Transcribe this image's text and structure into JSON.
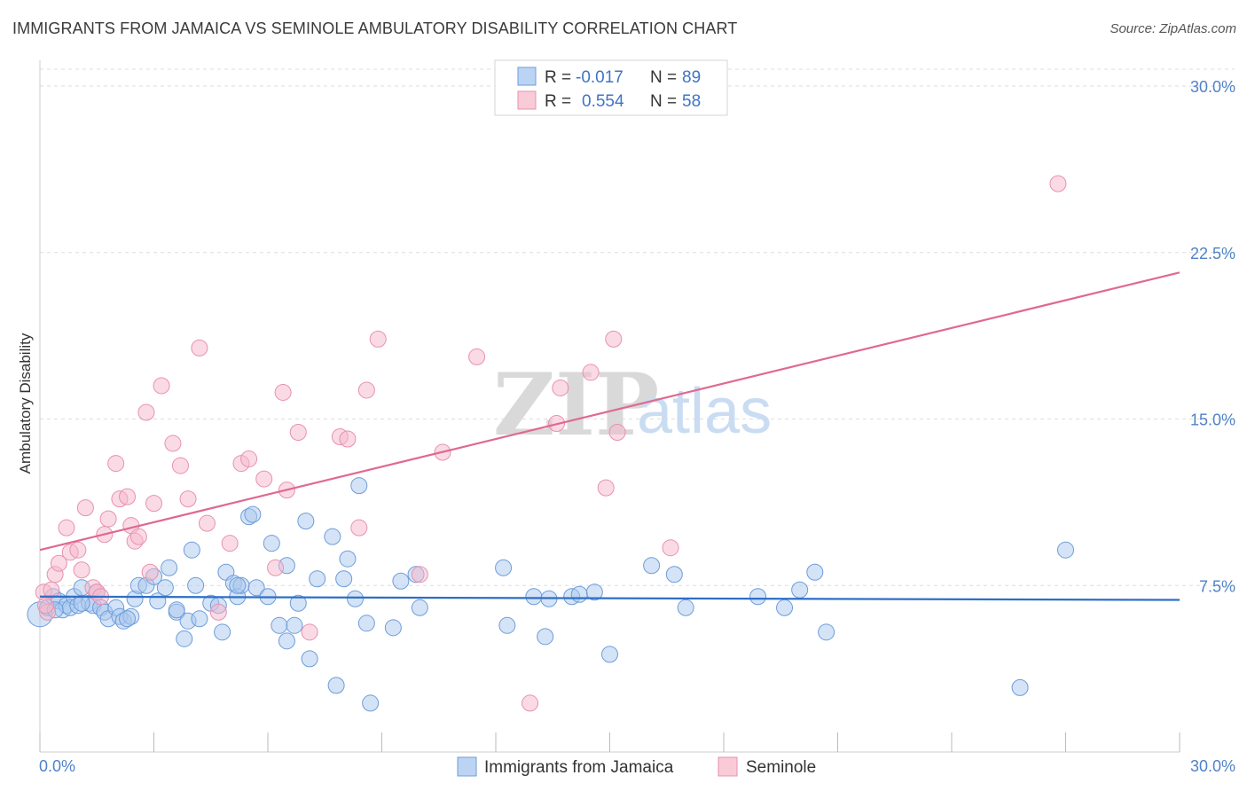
{
  "title": "IMMIGRANTS FROM JAMAICA VS SEMINOLE AMBULATORY DISABILITY CORRELATION CHART",
  "source": "Source: ZipAtlas.com",
  "watermark": {
    "part1": "ZIP",
    "part2": "atlas"
  },
  "colors": {
    "blue_fill": "#a9c7ee",
    "blue_stroke": "#6d9ddb",
    "blue_line": "#2e6ec6",
    "pink_fill": "#f5b8cb",
    "pink_stroke": "#e891ad",
    "pink_line": "#e0698f",
    "tick_label": "#4f82c8",
    "grid": "#dddddd"
  },
  "legend": {
    "rows": [
      {
        "r_label": "R = ",
        "r_value": "-0.017",
        "n_label": "N = ",
        "n_value": "89"
      },
      {
        "r_label": "R = ",
        "r_value": "0.554",
        "n_label": "N = ",
        "n_value": "58"
      }
    ]
  },
  "chart_data": {
    "type": "scatter",
    "title": "IMMIGRANTS FROM JAMAICA VS SEMINOLE AMBULATORY DISABILITY CORRELATION CHART",
    "xlabel": "",
    "ylabel": "Ambulatory Disability",
    "xlim": [
      0,
      30
    ],
    "ylim": [
      0,
      31
    ],
    "x_tick_labels": [
      "0.0%",
      "30.0%"
    ],
    "y_ticks": [
      7.5,
      15.0,
      22.5,
      30.0
    ],
    "y_tick_labels": [
      "7.5%",
      "15.0%",
      "22.5%",
      "30.0%"
    ],
    "grid": "horizontal dashed",
    "legend_placement": "bottom",
    "series": [
      {
        "name": "Immigrants from Jamaica",
        "color": "blue",
        "trend": {
          "x0": 0,
          "y0": 7.0,
          "x1": 30,
          "y1": 6.85
        },
        "points": [
          [
            0.0,
            6.2
          ],
          [
            0.2,
            6.5
          ],
          [
            0.35,
            7.0
          ],
          [
            0.5,
            6.8
          ],
          [
            0.6,
            6.4
          ],
          [
            0.7,
            6.6
          ],
          [
            0.8,
            6.5
          ],
          [
            0.9,
            7.0
          ],
          [
            1.0,
            6.6
          ],
          [
            1.1,
            7.4
          ],
          [
            1.3,
            6.7
          ],
          [
            1.4,
            6.6
          ],
          [
            1.5,
            7.2
          ],
          [
            1.6,
            6.5
          ],
          [
            1.7,
            6.3
          ],
          [
            1.8,
            6.0
          ],
          [
            2.0,
            6.5
          ],
          [
            2.1,
            6.1
          ],
          [
            2.2,
            5.9
          ],
          [
            2.4,
            6.1
          ],
          [
            2.5,
            6.9
          ],
          [
            2.6,
            7.5
          ],
          [
            2.8,
            7.5
          ],
          [
            3.0,
            7.9
          ],
          [
            3.1,
            6.8
          ],
          [
            3.3,
            7.4
          ],
          [
            3.4,
            8.3
          ],
          [
            3.6,
            6.3
          ],
          [
            3.8,
            5.1
          ],
          [
            3.9,
            5.9
          ],
          [
            4.1,
            7.5
          ],
          [
            4.2,
            6.0
          ],
          [
            4.0,
            9.1
          ],
          [
            4.5,
            6.7
          ],
          [
            4.7,
            6.6
          ],
          [
            4.8,
            5.4
          ],
          [
            4.9,
            8.1
          ],
          [
            5.1,
            7.6
          ],
          [
            5.2,
            7.0
          ],
          [
            5.3,
            7.5
          ],
          [
            5.5,
            10.6
          ],
          [
            5.6,
            10.7
          ],
          [
            5.7,
            7.4
          ],
          [
            6.0,
            7.0
          ],
          [
            6.1,
            9.4
          ],
          [
            6.3,
            5.7
          ],
          [
            6.5,
            5.0
          ],
          [
            6.7,
            5.7
          ],
          [
            6.8,
            6.7
          ],
          [
            7.0,
            10.4
          ],
          [
            7.1,
            4.2
          ],
          [
            7.3,
            7.8
          ],
          [
            7.7,
            9.7
          ],
          [
            7.8,
            3.0
          ],
          [
            8.0,
            7.8
          ],
          [
            8.1,
            8.7
          ],
          [
            8.3,
            6.9
          ],
          [
            8.4,
            12.0
          ],
          [
            8.6,
            5.8
          ],
          [
            8.7,
            2.2
          ],
          [
            9.3,
            5.6
          ],
          [
            9.5,
            7.7
          ],
          [
            9.9,
            8.0
          ],
          [
            10.0,
            6.5
          ],
          [
            12.2,
            8.3
          ],
          [
            12.3,
            5.7
          ],
          [
            13.0,
            7.0
          ],
          [
            13.3,
            5.2
          ],
          [
            13.4,
            6.9
          ],
          [
            14.0,
            7.0
          ],
          [
            14.2,
            7.1
          ],
          [
            14.6,
            7.2
          ],
          [
            15.0,
            4.4
          ],
          [
            16.1,
            8.4
          ],
          [
            16.7,
            8.0
          ],
          [
            17.0,
            6.5
          ],
          [
            18.9,
            7.0
          ],
          [
            19.6,
            6.5
          ],
          [
            20.0,
            7.3
          ],
          [
            20.4,
            8.1
          ],
          [
            20.7,
            5.4
          ],
          [
            25.8,
            2.9
          ],
          [
            27.0,
            9.1
          ],
          [
            6.5,
            8.4
          ],
          [
            3.6,
            6.4
          ],
          [
            1.1,
            6.7
          ],
          [
            0.4,
            6.4
          ],
          [
            2.3,
            6.0
          ],
          [
            5.2,
            7.5
          ]
        ]
      },
      {
        "name": "Seminole",
        "color": "pink",
        "trend": {
          "x0": 0,
          "y0": 9.1,
          "x1": 30,
          "y1": 21.6
        },
        "points": [
          [
            0.1,
            7.2
          ],
          [
            0.2,
            6.3
          ],
          [
            0.3,
            7.3
          ],
          [
            0.4,
            8.0
          ],
          [
            0.5,
            8.5
          ],
          [
            0.7,
            10.1
          ],
          [
            0.8,
            9.0
          ],
          [
            1.0,
            9.1
          ],
          [
            1.1,
            8.2
          ],
          [
            1.2,
            11.0
          ],
          [
            1.4,
            7.4
          ],
          [
            1.5,
            7.2
          ],
          [
            1.6,
            7.0
          ],
          [
            1.7,
            9.8
          ],
          [
            1.8,
            10.5
          ],
          [
            2.0,
            13.0
          ],
          [
            2.1,
            11.4
          ],
          [
            2.3,
            11.5
          ],
          [
            2.4,
            10.2
          ],
          [
            2.5,
            9.5
          ],
          [
            2.6,
            9.7
          ],
          [
            2.8,
            15.3
          ],
          [
            2.9,
            8.1
          ],
          [
            3.0,
            11.2
          ],
          [
            3.2,
            16.5
          ],
          [
            3.5,
            13.9
          ],
          [
            3.7,
            12.9
          ],
          [
            3.9,
            11.4
          ],
          [
            4.2,
            18.2
          ],
          [
            4.4,
            10.3
          ],
          [
            4.7,
            6.3
          ],
          [
            5.0,
            9.4
          ],
          [
            5.3,
            13.0
          ],
          [
            5.5,
            13.2
          ],
          [
            5.9,
            12.3
          ],
          [
            6.2,
            8.3
          ],
          [
            6.4,
            16.2
          ],
          [
            6.5,
            11.8
          ],
          [
            6.8,
            14.4
          ],
          [
            7.1,
            5.4
          ],
          [
            7.9,
            14.2
          ],
          [
            8.1,
            14.1
          ],
          [
            8.4,
            10.1
          ],
          [
            8.6,
            16.3
          ],
          [
            8.9,
            18.6
          ],
          [
            10.0,
            8.0
          ],
          [
            10.6,
            13.5
          ],
          [
            11.5,
            17.8
          ],
          [
            12.9,
            2.2
          ],
          [
            13.6,
            14.8
          ],
          [
            13.7,
            16.4
          ],
          [
            14.5,
            17.1
          ],
          [
            14.9,
            11.9
          ],
          [
            15.1,
            18.6
          ],
          [
            15.2,
            14.4
          ],
          [
            16.6,
            9.2
          ],
          [
            26.8,
            25.6
          ],
          [
            0.15,
            6.6
          ]
        ]
      }
    ]
  }
}
